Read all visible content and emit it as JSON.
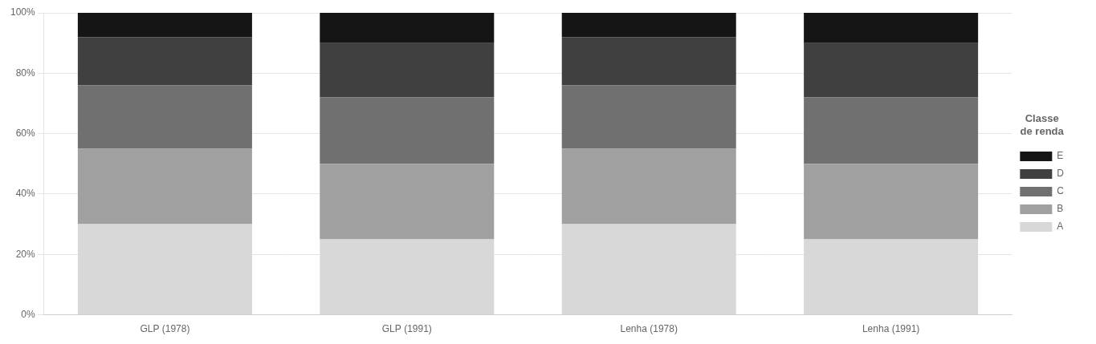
{
  "chart_data": {
    "type": "bar",
    "categories": [
      "GLP (1978)",
      "GLP (1991)",
      "Lenha (1978)",
      "Lenha (1991)"
    ],
    "series": [
      {
        "name": "A",
        "color": "#d8d8d8",
        "values": [
          0.3,
          0.25,
          0.3,
          0.25
        ]
      },
      {
        "name": "B",
        "color": "#a0a0a0",
        "values": [
          0.25,
          0.25,
          0.25,
          0.25
        ]
      },
      {
        "name": "C",
        "color": "#707070",
        "values": [
          0.21,
          0.22,
          0.21,
          0.22
        ]
      },
      {
        "name": "D",
        "color": "#404040",
        "values": [
          0.16,
          0.18,
          0.16,
          0.18
        ]
      },
      {
        "name": "E",
        "color": "#151515",
        "values": [
          0.08,
          0.1,
          0.08,
          0.1
        ]
      }
    ],
    "stacked": true,
    "legend": "right",
    "legend_title": "Classe\nde renda",
    "ylim": [
      0,
      1.0
    ],
    "yticks": [
      {
        "value": 0.0,
        "label": "0%"
      },
      {
        "value": 0.2,
        "label": "20%"
      },
      {
        "value": 0.4,
        "label": "40%"
      },
      {
        "value": 0.6,
        "label": "60%"
      },
      {
        "value": 0.8,
        "label": "80%"
      },
      {
        "value": 1.0,
        "label": "100%"
      }
    ],
    "grid": true
  }
}
